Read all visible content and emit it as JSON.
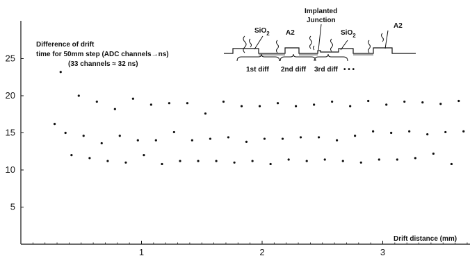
{
  "chart_data": {
    "type": "scatter",
    "title": "",
    "xlabel": "Drift distance (mm)",
    "ylabel": "",
    "xlim": [
      0,
      3.75
    ],
    "ylim": [
      0,
      28
    ],
    "xticks": [
      1,
      2,
      3
    ],
    "yticks": [
      5,
      10,
      15,
      20,
      25
    ],
    "grid": false,
    "annotation": [
      "Difference of drift",
      "time for 50mm step (ADC channels→ns)",
      "(33 channels ≈ 32 ns)"
    ],
    "inset": {
      "labels": {
        "sio2_a": "SiO",
        "sio2_a_sub": "2",
        "a2_a": "A2",
        "implanted_1": "Implanted",
        "implanted_2": "Junction",
        "sio2_b": "SiO",
        "sio2_b_sub": "2",
        "a2_b": "A2",
        "diff_1": "1st diff",
        "diff_2": "2nd diff",
        "diff_3": "3rd diff",
        "ellipsis": "• • •"
      }
    },
    "series": [
      {
        "x": [
          0.33,
          0.48,
          0.63,
          0.78,
          0.93,
          1.08,
          1.23,
          1.38,
          1.53,
          1.68,
          1.83,
          1.98,
          2.13,
          2.28,
          2.43,
          2.58,
          2.73,
          2.88,
          3.03,
          3.18,
          3.33,
          3.48,
          3.63
        ],
        "values": [
          23.2,
          20.0,
          19.2,
          18.2,
          19.6,
          18.8,
          19.0,
          19.0,
          17.6,
          19.2,
          18.6,
          18.6,
          19.0,
          18.6,
          18.8,
          19.2,
          18.6,
          19.3,
          18.8,
          19.2,
          19.1,
          18.9,
          19.3
        ]
      },
      {
        "x": [
          0.28,
          0.37,
          0.52,
          0.67,
          0.82,
          0.97,
          1.12,
          1.27,
          1.42,
          1.57,
          1.72,
          1.87,
          2.02,
          2.17,
          2.32,
          2.47,
          2.62,
          2.77,
          2.92,
          3.07,
          3.22,
          3.37,
          3.52,
          3.67
        ],
        "values": [
          16.2,
          15.0,
          14.6,
          13.6,
          14.6,
          14.0,
          14.0,
          15.1,
          14.0,
          14.2,
          14.4,
          13.8,
          14.2,
          14.2,
          14.4,
          14.4,
          14.0,
          14.6,
          15.2,
          15.0,
          15.2,
          14.8,
          15.1,
          15.2
        ]
      },
      {
        "x": [
          0.42,
          0.57,
          0.72,
          0.87,
          1.02,
          1.17,
          1.32,
          1.47,
          1.62,
          1.77,
          1.92,
          2.07,
          2.22,
          2.37,
          2.52,
          2.67,
          2.82,
          2.97,
          3.12,
          3.27,
          3.42,
          3.57
        ],
        "values": [
          12.0,
          11.6,
          11.2,
          11.0,
          12.0,
          10.8,
          11.2,
          11.2,
          11.2,
          11.0,
          11.2,
          10.8,
          11.4,
          11.2,
          11.4,
          11.2,
          11.0,
          11.4,
          11.4,
          11.6,
          12.2,
          10.8
        ]
      }
    ]
  }
}
